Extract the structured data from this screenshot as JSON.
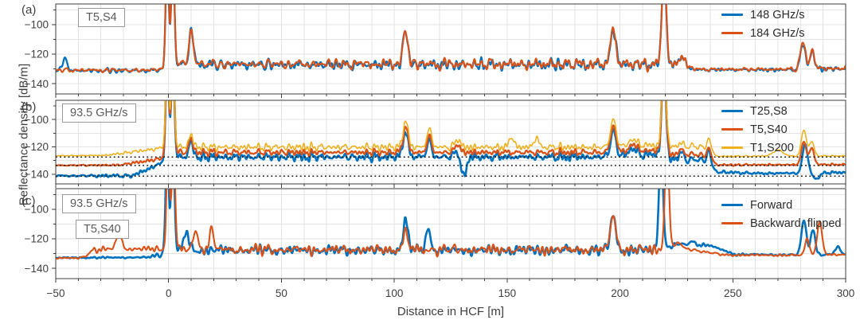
{
  "figure": {
    "xlabel": "Distance in HCF [m]",
    "ylabel": "Reflectance density [dB/m]",
    "xlim": [
      -50,
      300
    ],
    "ylim": [
      -147,
      -86
    ],
    "grid": true,
    "grid_step": 10,
    "background": "#ffffff",
    "grid_color": "#e3e3e3",
    "axis_color": "#3e3e3e",
    "text_color": "#3e3e3e",
    "dotted_line_color": "#111111",
    "x_ticks": {
      "values": [
        -50,
        0,
        50,
        100,
        150,
        200,
        250,
        300
      ],
      "labels": [
        "−50",
        "0",
        "50",
        "100",
        "150",
        "200",
        "250",
        "300"
      ],
      "minor_step": 10
    },
    "y_ticks": {
      "values": [
        -100,
        -120,
        -140
      ],
      "labels": [
        "−100",
        "−120",
        "−140"
      ],
      "minor_step": 10
    }
  },
  "chart_data": [
    {
      "type": "line",
      "tag": "(a)",
      "annotations": [
        "T5,S4"
      ],
      "legend": [
        {
          "label": "148 GHz/s",
          "color": "#0072BD"
        },
        {
          "label": "184 GHz/s",
          "color": "#D95319"
        }
      ],
      "dotted_lines": [],
      "series": [
        {
          "name": "148 GHz/s",
          "color": "#0072BD",
          "width": 2.3,
          "seed": 11,
          "shared_seed": 10,
          "shared_w": 0.75,
          "own_w": 0.5,
          "base": [
            [
              -50,
              -131.2
            ],
            [
              -6,
              -131.2
            ],
            [
              3,
              -127.2
            ],
            [
              229,
              -127.2
            ],
            [
              233,
              -130.6
            ],
            [
              274,
              -130.6
            ],
            [
              300,
              -129.8
            ]
          ],
          "amp": [
            [
              -50,
              1.7
            ],
            [
              -6,
              1.8
            ],
            [
              3,
              3.9
            ],
            [
              229,
              3.9
            ],
            [
              233,
              1.1
            ],
            [
              274,
              1.2
            ],
            [
              279,
              2.2
            ],
            [
              300,
              1.8
            ]
          ],
          "peaks": [
            [
              -46,
              -123.5,
              1.1
            ],
            [
              -0.6,
              -55,
              0.7
            ],
            [
              1.9,
              -55,
              0.7
            ],
            [
              10,
              -104.5,
              1.0
            ],
            [
              105,
              -105,
              1.1
            ],
            [
              197,
              -104,
              1.2
            ],
            [
              219.5,
              -55,
              0.9
            ],
            [
              227,
              -122,
              1.1
            ],
            [
              281,
              -113.5,
              1.1
            ],
            [
              285.2,
              -118,
              1.0
            ]
          ]
        },
        {
          "name": "184 GHz/s",
          "color": "#D95319",
          "width": 2.1,
          "seed": 12,
          "shared_seed": 10,
          "shared_w": 0.75,
          "own_w": 0.5,
          "base": [
            [
              -50,
              -130.9
            ],
            [
              -6,
              -130.9
            ],
            [
              3,
              -126.8
            ],
            [
              229,
              -126.8
            ],
            [
              233,
              -130.3
            ],
            [
              274,
              -130.3
            ],
            [
              300,
              -129.5
            ]
          ],
          "amp": [
            [
              -50,
              1.5
            ],
            [
              -6,
              1.6
            ],
            [
              3,
              3.7
            ],
            [
              229,
              3.7
            ],
            [
              233,
              1.0
            ],
            [
              274,
              1.1
            ],
            [
              279,
              2.2
            ],
            [
              300,
              1.8
            ]
          ],
          "peaks": [
            [
              -0.6,
              -55,
              0.7
            ],
            [
              1.9,
              -55,
              0.7
            ],
            [
              10,
              -104,
              1.0
            ],
            [
              105,
              -104.5,
              1.1
            ],
            [
              197,
              -103.2,
              1.2
            ],
            [
              219.5,
              -55,
              0.9
            ],
            [
              227,
              -121.5,
              1.1
            ],
            [
              281,
              -111.5,
              1.1
            ],
            [
              285.2,
              -117.5,
              1.0
            ]
          ]
        }
      ]
    },
    {
      "type": "line",
      "tag": "(b)",
      "annotations": [
        "93.5 GHz/s"
      ],
      "legend": [
        {
          "label": "T25,S8",
          "color": "#0072BD"
        },
        {
          "label": "T5,S40",
          "color": "#D95319"
        },
        {
          "label": "T1,S200",
          "color": "#EDB120"
        }
      ],
      "dotted_lines": [
        -127.4,
        -133.6,
        -141.3
      ],
      "series": [
        {
          "name": "T25,S8",
          "color": "#0072BD",
          "width": 2.6,
          "seed": 21,
          "shared_seed": 20,
          "shared_w": 0.8,
          "own_w": 0.35,
          "base": [
            [
              -50,
              -141.1
            ],
            [
              -16,
              -141.1
            ],
            [
              3,
              -127.4
            ],
            [
              198,
              -127.4
            ],
            [
              201,
              -125.6
            ],
            [
              217,
              -125.6
            ],
            [
              222,
              -129.2
            ],
            [
              236,
              -129.2
            ],
            [
              243,
              -138.3
            ],
            [
              262,
              -139.4
            ],
            [
              300,
              -138.7
            ]
          ],
          "amp": [
            [
              -50,
              1.3
            ],
            [
              -16,
              1.3
            ],
            [
              3,
              3.4
            ],
            [
              236,
              3.4
            ],
            [
              243,
              1.0
            ],
            [
              300,
              1.0
            ]
          ],
          "peaks": [
            [
              -0.6,
              -55,
              0.7
            ],
            [
              1.9,
              -55,
              0.7
            ],
            [
              10,
              -117,
              1.0
            ],
            [
              105,
              -108.5,
              1.1
            ],
            [
              115.5,
              -115,
              1.0
            ],
            [
              128,
              -120,
              1.0
            ],
            [
              130.5,
              -141,
              1.4
            ],
            [
              197,
              -108,
              1.2
            ],
            [
              206,
              -120.5,
              1.2
            ],
            [
              219.5,
              -55,
              0.9
            ],
            [
              227,
              -124.5,
              1.0
            ],
            [
              239.5,
              -123,
              0.9
            ],
            [
              282,
              -117.5,
              1.1
            ],
            [
              287,
              -143.5,
              1.3
            ]
          ]
        },
        {
          "name": "T5,S40",
          "color": "#D95319",
          "width": 2.3,
          "seed": 22,
          "shared_seed": 20,
          "shared_w": 0.8,
          "own_w": 0.35,
          "base": [
            [
              -50,
              -133.5
            ],
            [
              -22,
              -133.3
            ],
            [
              -3,
              -128.6
            ],
            [
              3,
              -124
            ],
            [
              198,
              -124
            ],
            [
              201,
              -122.6
            ],
            [
              217,
              -122.6
            ],
            [
              222,
              -125.6
            ],
            [
              236,
              -125.6
            ],
            [
              243,
              -133.2
            ],
            [
              300,
              -132.9
            ]
          ],
          "amp": [
            [
              -50,
              0.6
            ],
            [
              -22,
              0.7
            ],
            [
              3,
              2.6
            ],
            [
              236,
              2.6
            ],
            [
              243,
              0.7
            ],
            [
              300,
              0.7
            ]
          ],
          "peaks": [
            [
              -0.6,
              -55,
              0.7
            ],
            [
              1.9,
              -55,
              0.7
            ],
            [
              10,
              -114.5,
              1.0
            ],
            [
              105,
              -105,
              1.1
            ],
            [
              115.5,
              -112,
              1.0
            ],
            [
              128,
              -117.5,
              1.0
            ],
            [
              197,
              -104.5,
              1.2
            ],
            [
              206,
              -117.5,
              1.2
            ],
            [
              219.5,
              -55,
              0.9
            ],
            [
              227,
              -121.5,
              1.0
            ],
            [
              239.5,
              -120.5,
              0.9
            ],
            [
              281.5,
              -116,
              1.1
            ],
            [
              285,
              -120.5,
              1.0
            ]
          ]
        },
        {
          "name": "T1,S200",
          "color": "#EDB120",
          "width": 1.6,
          "seed": 23,
          "shared_seed": 20,
          "shared_w": 0.8,
          "own_w": 0.35,
          "base": [
            [
              -50,
              -126.5
            ],
            [
              -28,
              -126.2
            ],
            [
              -3,
              -120.9
            ],
            [
              3,
              -120.2
            ],
            [
              198,
              -120.2
            ],
            [
              201,
              -118.8
            ],
            [
              217,
              -118.8
            ],
            [
              222,
              -119.7
            ],
            [
              236,
              -119.7
            ],
            [
              243,
              -126.9
            ],
            [
              300,
              -126.6
            ]
          ],
          "amp": [
            [
              -50,
              0.45
            ],
            [
              -28,
              0.5
            ],
            [
              3,
              2.9
            ],
            [
              236,
              2.9
            ],
            [
              243,
              0.5
            ],
            [
              300,
              0.5
            ]
          ],
          "peaks": [
            [
              -0.6,
              -55,
              0.7
            ],
            [
              1.9,
              -55,
              0.7
            ],
            [
              10,
              -111.5,
              1.0
            ],
            [
              105,
              -100.5,
              1.1
            ],
            [
              115.5,
              -106.5,
              1.0
            ],
            [
              128,
              -114,
              1.0
            ],
            [
              152,
              -112.5,
              1.0
            ],
            [
              163,
              -113,
              1.0
            ],
            [
              197,
              -99.5,
              1.2
            ],
            [
              206,
              -113.5,
              1.2
            ],
            [
              219.5,
              -55,
              0.9
            ],
            [
              227,
              -117,
              1.0
            ],
            [
              239.5,
              -114,
              0.9
            ],
            [
              270,
              -122.3,
              2.2
            ],
            [
              281.5,
              -107.5,
              1.1
            ],
            [
              285,
              -116,
              1.0
            ]
          ]
        }
      ]
    },
    {
      "type": "line",
      "tag": "(c)",
      "annotations": [
        "93.5 GHz/s",
        "T5,S40"
      ],
      "legend": [
        {
          "label": "Forward",
          "color": "#0072BD"
        },
        {
          "label": "Backward, flipped",
          "color": "#D95319"
        }
      ],
      "dotted_lines": [],
      "series": [
        {
          "name": "Forward",
          "color": "#0072BD",
          "width": 2.6,
          "seed": 31,
          "shared_seed": 30,
          "shared_w": 0.75,
          "own_w": 0.5,
          "base": [
            [
              -50,
              -132.9
            ],
            [
              -9,
              -132.6
            ],
            [
              3,
              -127.8
            ],
            [
              220,
              -127.8
            ],
            [
              224,
              -123.8
            ],
            [
              239,
              -124.2
            ],
            [
              251,
              -130.6
            ],
            [
              277,
              -131
            ],
            [
              300,
              -130.6
            ]
          ],
          "amp": [
            [
              -50,
              0.45
            ],
            [
              -9,
              0.7
            ],
            [
              3,
              3.6
            ],
            [
              220,
              3.6
            ],
            [
              224,
              1.3
            ],
            [
              245,
              0.9
            ],
            [
              300,
              0.9
            ]
          ],
          "peaks": [
            [
              -0.6,
              -55,
              0.7
            ],
            [
              1.9,
              -55,
              0.7
            ],
            [
              8,
              -114.5,
              1.0
            ],
            [
              105,
              -108,
              1.1
            ],
            [
              115,
              -112.5,
              1.0
            ],
            [
              197,
              -104,
              1.2
            ],
            [
              218.2,
              -55,
              0.9
            ],
            [
              232,
              -121.5,
              1.0
            ],
            [
              281.5,
              -107.5,
              1.1
            ],
            [
              285.5,
              -113.5,
              1.0
            ],
            [
              296.5,
              -125,
              1.0
            ]
          ]
        },
        {
          "name": "Backward, flipped",
          "color": "#D95319",
          "width": 2.1,
          "seed": 32,
          "shared_seed": 30,
          "shared_w": 0.75,
          "own_w": 0.5,
          "base": [
            [
              -50,
              -133.1
            ],
            [
              -39,
              -133.1
            ],
            [
              -33,
              -127.5
            ],
            [
              -5,
              -126.8
            ],
            [
              3,
              -127.4
            ],
            [
              218,
              -127.4
            ],
            [
              223,
              -125
            ],
            [
              246,
              -131
            ],
            [
              277,
              -131.2
            ],
            [
              300,
              -130.8
            ]
          ],
          "amp": [
            [
              -50,
              0.5
            ],
            [
              -39,
              0.6
            ],
            [
              -33,
              2.0
            ],
            [
              -5,
              2.0
            ],
            [
              3,
              3.5
            ],
            [
              218,
              3.5
            ],
            [
              224,
              1.1
            ],
            [
              246,
              0.8
            ],
            [
              300,
              0.8
            ]
          ],
          "peaks": [
            [
              -22,
              -117.5,
              1.4
            ],
            [
              -0.2,
              -55,
              0.7
            ],
            [
              2.2,
              -55,
              0.7
            ],
            [
              12,
              -113.5,
              1.0
            ],
            [
              19,
              -114,
              1.0
            ],
            [
              105,
              -115,
              1.0
            ],
            [
              197,
              -103.5,
              1.2
            ],
            [
              220.8,
              -55,
              0.9
            ],
            [
              226,
              -122.5,
              1.0
            ],
            [
              283,
              -120,
              1.0
            ],
            [
              288.5,
              -108.5,
              1.1
            ]
          ]
        }
      ]
    }
  ]
}
